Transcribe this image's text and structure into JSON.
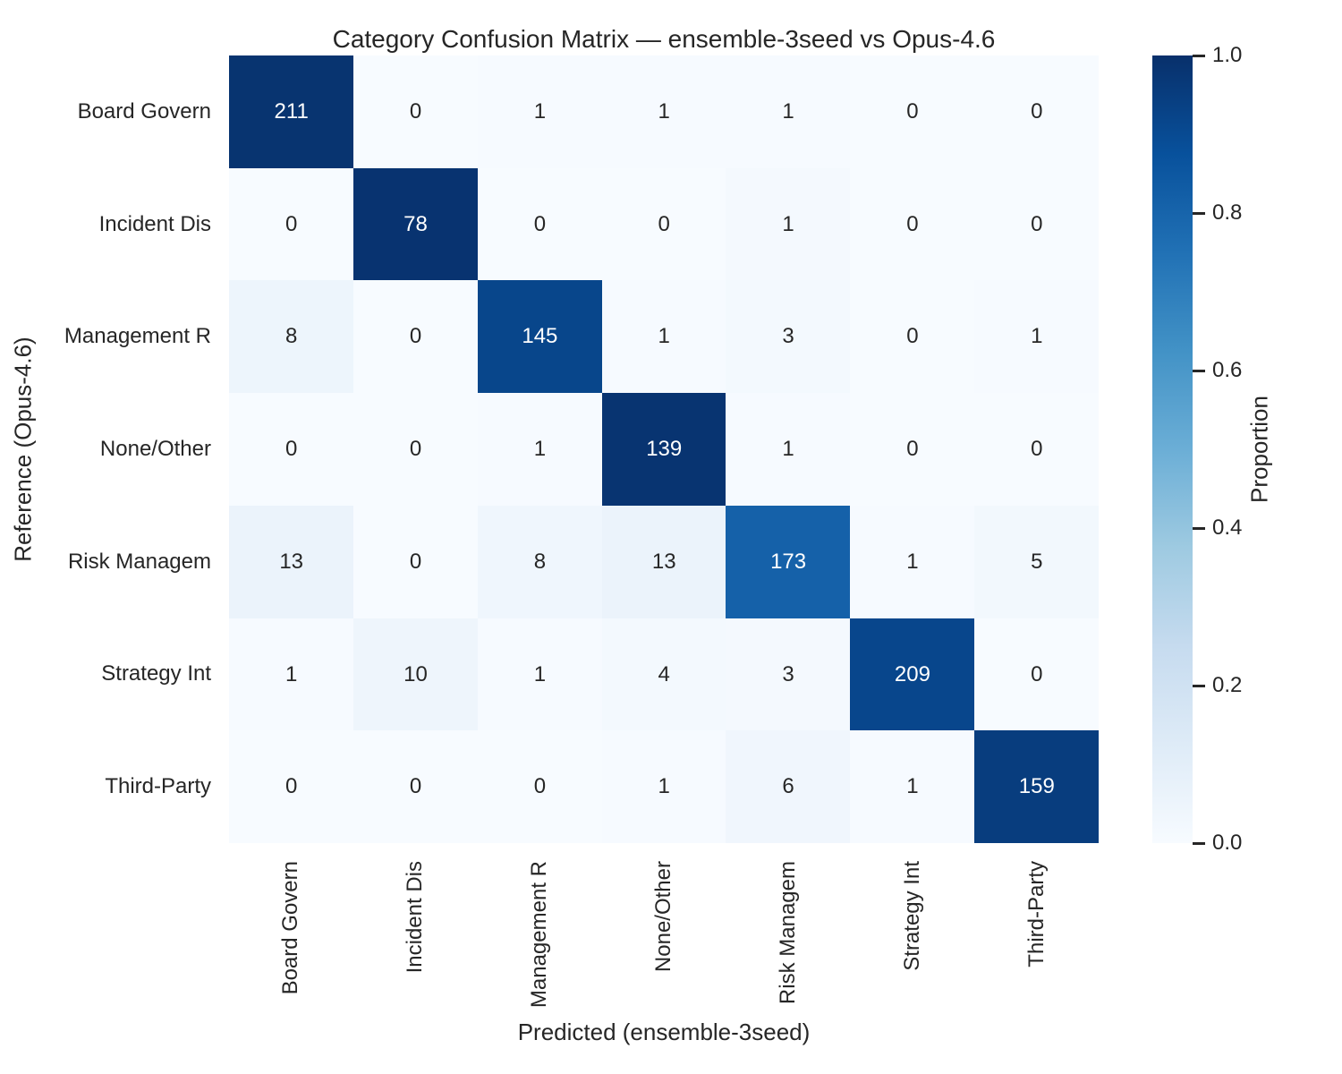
{
  "title": "Category Confusion Matrix — ensemble-3seed vs Opus-4.6",
  "chart_data": {
    "type": "heatmap",
    "title": "Category Confusion Matrix — ensemble-3seed vs Opus-4.6",
    "xlabel": "Predicted (ensemble-3seed)",
    "ylabel": "Reference (Opus-4.6)",
    "categories": [
      "Board Govern",
      "Incident Dis",
      "Management R",
      "None/Other",
      "Risk Managem",
      "Strategy Int",
      "Third-Party"
    ],
    "matrix": [
      [
        211,
        0,
        1,
        1,
        1,
        0,
        0
      ],
      [
        0,
        78,
        0,
        0,
        1,
        0,
        0
      ],
      [
        8,
        0,
        145,
        1,
        3,
        0,
        1
      ],
      [
        0,
        0,
        1,
        139,
        1,
        0,
        0
      ],
      [
        13,
        0,
        8,
        13,
        173,
        1,
        5
      ],
      [
        1,
        10,
        1,
        4,
        3,
        209,
        0
      ],
      [
        0,
        0,
        0,
        1,
        6,
        1,
        159
      ]
    ],
    "normalization": "row",
    "grid": false,
    "colorbar": {
      "label": "Proportion",
      "ticks": [
        "1.0",
        "0.8",
        "0.6",
        "0.4",
        "0.2",
        "0.0"
      ],
      "range": [
        0.0,
        1.0
      ],
      "position": "right"
    },
    "colormap": {
      "name": "Blues",
      "anchors": [
        "#f7fbff",
        "#deebf7",
        "#c6dbef",
        "#9ecae1",
        "#6baed6",
        "#4292c6",
        "#2171b5",
        "#08519c",
        "#08306b"
      ]
    }
  },
  "colors": {
    "background": "#ffffff",
    "text": "#262626",
    "annotation_on_dark": "#ffffff",
    "annotation_on_light": "#262626",
    "tick_mark": "#262626"
  }
}
